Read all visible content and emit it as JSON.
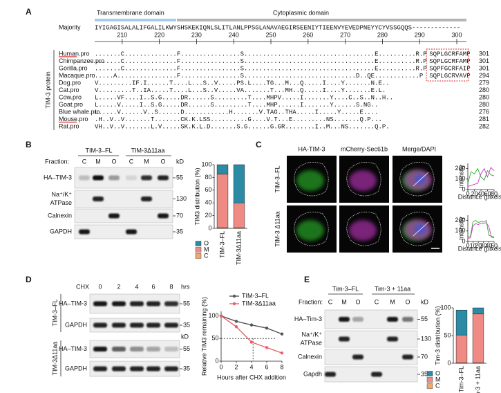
{
  "panel_labels": [
    "A",
    "B",
    "C",
    "D",
    "E"
  ],
  "alignment": {
    "domains": [
      "Transmembrane domain",
      "Cytoplasmic domain"
    ],
    "consensus_label": "Majority",
    "consensus": "IYIGAGISALALIFGALILKWYSHSKEKIQNLSLITLANLPPSGLANAVAEGIRSEENIYTIEENVYEVEDPNEYYCYVSSGQQS-------------",
    "ruler": [
      210,
      220,
      230,
      240,
      250,
      260,
      270,
      280,
      290,
      300
    ],
    "group_label": "TIM-3 protein",
    "rows": [
      {
        "name": "Human.pro",
        "sequence": ".......C..............F................S...................................E..........R.P",
        "tail": "SQPLGCRFAMP",
        "length": 301
      },
      {
        "name": "Chimpanzee.pro",
        "sequence": ".......C..............F................S...................................E..........R.P",
        "tail": "SQPLGCRFAMP",
        "length": 301
      },
      {
        "name": "Gorilla.pro",
        "sequence": ".......C..............F................S...................................E..........R.P",
        "tail": "SQPFGCRFAIP",
        "length": 301
      },
      {
        "name": "Macaque.pro",
        "sequence": ".....A................F................S..............................D..QE............P",
        "tail": "SQPLGCRVAVP",
        "length": 294
      },
      {
        "name": "Dog.pro",
        "sequence": "V.........IF.I......T....L...S..V.....PS.L....TG...M...Q.....I....Y.......N.E..",
        "length": 279
      },
      {
        "name": "Cat.pro",
        "sequence": "V.........T..IA.....T....L...S..V.....VA.......T...MH..Q.....I....Y.......E.L.",
        "length": 280
      },
      {
        "name": "Cow.pro",
        "sequence": "L.....VF....I..S.G.....DR......S.........T....MHPV.....I.......Y....C..S..N..H..",
        "length": 280
      },
      {
        "name": "Goat.pro",
        "sequence": "L.....V.....I..S.G.....DR......S.........T....MHP......I.......Y......S.NG..",
        "length": 280
      },
      {
        "name": "Blue whale.pro",
        "sequence": "L.....V......V..S......D............H.......V.TAG..THA.....I.....Y.....E....",
        "length": 276
      },
      {
        "name": "Mouse.pro",
        "sequence": ".H..V..V.......T.......CK.K.LSS..........G....V.T...E.........NS.......Q.P...",
        "length": 281
      },
      {
        "name": "Rat.pro",
        "sequence": "VH..V..V.......L.V.....SK.K.L.D.......S.G......G.GR........I..M...NS.......Q.P.",
        "length": 282
      }
    ]
  },
  "blot_b": {
    "groups": [
      "TIM-3–FL",
      "TIM-3Δ11aa"
    ],
    "fraction_label": "Fraction:",
    "fractions": [
      "C",
      "M",
      "O",
      "C",
      "M",
      "O"
    ],
    "kd_label": "kD",
    "rows": [
      {
        "label": "HA–TIM-3",
        "kd": 55
      },
      {
        "label": [
          "Na⁺/K⁺",
          "ATPase"
        ],
        "kd": 130
      },
      {
        "label": "Calnexin",
        "kd": 70
      },
      {
        "label": "GAPDH",
        "kd": 35
      }
    ]
  },
  "panel_c": {
    "channels": [
      "HA-TIM-3",
      "mCherry-Sec61b",
      "Merge/",
      "DAPI"
    ],
    "rows": [
      "TIM-3–FL",
      "TIM-3 Δ11aa"
    ]
  },
  "blot_d": {
    "chx_label": "CHX",
    "times": [
      0,
      2,
      4,
      6,
      8
    ],
    "time_unit": "hrs",
    "groups": [
      "TIM-3–FL",
      "TIM-3Δ11aa"
    ],
    "rows": [
      "HA–TIM-3",
      "GAPDH"
    ],
    "kd_label": "kD",
    "kd": [
      55,
      35
    ]
  },
  "blot_e": {
    "groups": [
      "Tim-3–FL",
      "Tim-3 + 11aa"
    ],
    "fraction_label": "Fraction:",
    "fractions": [
      "C",
      "M",
      "O",
      "C",
      "M",
      "O"
    ],
    "kd_label": "kD",
    "rows": [
      {
        "label": "HA–Tim-3",
        "kd": 55
      },
      {
        "label": [
          "Na⁺/K⁺",
          "ATPase"
        ],
        "kd": 130
      },
      {
        "label": "Calnexin",
        "kd": 70
      },
      {
        "label": "Gapdh",
        "kd": 35
      }
    ]
  },
  "chart_data": [
    {
      "type": "stacked_bar",
      "categories": [
        "TIM-3–FL",
        "TIM-3Δ11aa"
      ],
      "ylabel": "TIM3 distribution (%)",
      "series": [
        {
          "name": "C",
          "color": "#f4a76a",
          "values": [
            1,
            1
          ]
        },
        {
          "name": "M",
          "color": "#f08a84",
          "values": [
            84,
            39
          ]
        },
        {
          "name": "O",
          "color": "#2b8ba5",
          "values": [
            15,
            60
          ]
        }
      ],
      "ylim": [
        0,
        100
      ],
      "yticks": [
        0,
        20,
        40,
        60,
        80,
        100
      ]
    },
    {
      "type": "line",
      "xlabel": "Distance (pixels)",
      "ylabel": "Intensity",
      "markers": false,
      "x": [
        0,
        10,
        20,
        30,
        40,
        50,
        60,
        70,
        80
      ],
      "series": [
        {
          "name": "HA-TIM-3",
          "color": "#22b022",
          "values": [
            60,
            170,
            150,
            200,
            120,
            90,
            180,
            140,
            130
          ]
        },
        {
          "name": "mCherry-Sec61b",
          "color": "#cc33cc",
          "values": [
            30,
            40,
            50,
            60,
            150,
            200,
            120,
            210,
            180
          ]
        }
      ],
      "xlim": [
        0,
        80
      ],
      "xticks": [
        0,
        20,
        40,
        60,
        80
      ],
      "ylim": [
        0,
        250
      ],
      "yticks": [
        0,
        100,
        200
      ]
    },
    {
      "type": "line",
      "xlabel": "Distance (pixels)",
      "ylabel": "Intensity",
      "markers": false,
      "x": [
        0,
        5,
        10,
        15,
        20,
        25,
        30,
        35,
        40,
        45,
        50
      ],
      "series": [
        {
          "name": "HA-TIM-3",
          "color": "#22b022",
          "values": [
            40,
            50,
            190,
            200,
            180,
            190,
            185,
            200,
            60,
            50,
            45
          ]
        },
        {
          "name": "mCherry-Sec61b",
          "color": "#cc33cc",
          "values": [
            30,
            35,
            150,
            170,
            160,
            175,
            170,
            180,
            140,
            40,
            35
          ]
        }
      ],
      "xlim": [
        0,
        50
      ],
      "xticks": [
        0,
        10,
        20,
        30,
        40,
        50
      ],
      "ylim": [
        0,
        250
      ],
      "yticks": [
        0,
        100,
        200
      ]
    },
    {
      "type": "line",
      "xlabel": "Hours after CHX addition",
      "ylabel": "Relative TIM3 remaining (%)",
      "markers": true,
      "x": [
        0,
        2,
        4,
        6,
        8
      ],
      "series": [
        {
          "name": "TIM-3–FL",
          "color": "#555555",
          "values": [
            100,
            88,
            80,
            73,
            60
          ]
        },
        {
          "name": "TIM-3Δ11aa",
          "color": "#e8606a",
          "values": [
            100,
            76,
            42,
            30,
            18
          ]
        }
      ],
      "reference": {
        "y": 50,
        "x": 4.2
      },
      "xlim": [
        0,
        8
      ],
      "xticks": [
        0,
        2,
        4,
        6,
        8
      ],
      "ylim": [
        0,
        110
      ],
      "yticks": [
        0,
        50,
        100
      ]
    },
    {
      "type": "stacked_bar",
      "categories": [
        "Tim-3–FL",
        "Tim-3 + 11aa"
      ],
      "ylabel": "Tim-3 distribution (%)",
      "series": [
        {
          "name": "C",
          "color": "#f4a76a",
          "values": [
            1,
            1
          ]
        },
        {
          "name": "M",
          "color": "#f08a84",
          "values": [
            50,
            88
          ]
        },
        {
          "name": "O",
          "color": "#2b8ba5",
          "values": [
            45,
            11
          ]
        }
      ],
      "ylim": [
        0,
        100
      ],
      "yticks": [
        0,
        50,
        100
      ]
    }
  ]
}
